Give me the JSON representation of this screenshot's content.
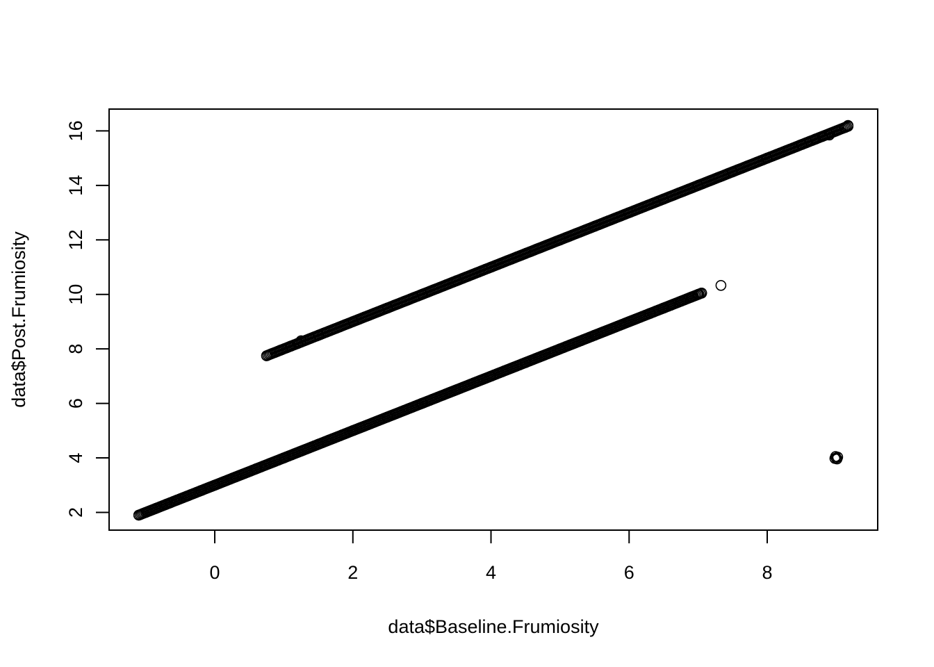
{
  "chart_data": {
    "type": "scatter",
    "title": "",
    "xlabel": "data$Baseline.Frumiosity",
    "ylabel": "data$Post.Frumiosity",
    "xlim": [
      -1.53,
      9.6
    ],
    "ylim": [
      1.35,
      16.8
    ],
    "xticks": [
      0,
      2,
      4,
      6,
      8
    ],
    "yticks": [
      2,
      4,
      6,
      8,
      10,
      12,
      14,
      16
    ],
    "grid": false,
    "legend": "none",
    "marker": "open-circle",
    "colors": {
      "points": "#000000",
      "axes": "#000000",
      "background": "#ffffff"
    },
    "series": [
      {
        "name": "",
        "points": [
          [
            -1.1,
            1.9
          ],
          [
            -1.0,
            2.0
          ],
          [
            -0.85,
            2.15
          ],
          [
            -0.7,
            2.3
          ],
          [
            -0.65,
            2.35
          ],
          [
            -0.55,
            2.45
          ],
          [
            -0.4,
            2.6
          ],
          [
            -0.2,
            2.8
          ],
          [
            0.0,
            3.0
          ],
          [
            0.3,
            3.3
          ],
          [
            0.6,
            3.6
          ],
          [
            1.0,
            4.0
          ],
          [
            1.5,
            4.5
          ],
          [
            2.0,
            5.0
          ],
          [
            2.5,
            5.5
          ],
          [
            3.0,
            6.0
          ],
          [
            3.5,
            6.5
          ],
          [
            4.0,
            7.0
          ],
          [
            4.5,
            7.5
          ],
          [
            5.0,
            8.0
          ],
          [
            5.5,
            8.5
          ],
          [
            6.0,
            9.0
          ],
          [
            6.3,
            9.3
          ],
          [
            6.5,
            9.5
          ],
          [
            6.6,
            9.6
          ],
          [
            6.75,
            9.75
          ],
          [
            6.9,
            9.9
          ],
          [
            7.0,
            10.0
          ],
          [
            7.05,
            10.05
          ],
          [
            7.33,
            10.33
          ],
          [
            0.75,
            7.75
          ],
          [
            0.95,
            7.95
          ],
          [
            1.1,
            8.1
          ],
          [
            1.2,
            8.2
          ],
          [
            1.25,
            8.3
          ],
          [
            1.5,
            8.5
          ],
          [
            2.0,
            9.0
          ],
          [
            2.5,
            9.5
          ],
          [
            3.0,
            10.0
          ],
          [
            3.5,
            10.5
          ],
          [
            4.0,
            11.0
          ],
          [
            4.5,
            11.5
          ],
          [
            5.0,
            12.0
          ],
          [
            5.5,
            12.5
          ],
          [
            6.0,
            13.0
          ],
          [
            6.5,
            13.5
          ],
          [
            7.0,
            14.0
          ],
          [
            7.5,
            14.5
          ],
          [
            8.0,
            15.0
          ],
          [
            8.5,
            15.5
          ],
          [
            8.7,
            15.7
          ],
          [
            8.8,
            15.8
          ],
          [
            8.9,
            15.85
          ],
          [
            9.0,
            16.0
          ],
          [
            9.13,
            16.13
          ],
          [
            9.17,
            16.2
          ],
          [
            8.98,
            3.98
          ],
          [
            9.0,
            4.0
          ],
          [
            9.02,
            4.03
          ],
          [
            8.99,
            4.05
          ],
          [
            9.01,
            3.96
          ]
        ],
        "dense_bands": [
          {
            "x_from": -1.1,
            "x_to": 7.05,
            "intercept": 3.0,
            "slope": 1.0
          },
          {
            "x_from": 0.75,
            "x_to": 9.17,
            "intercept": 7.0,
            "slope": 1.0
          }
        ]
      }
    ]
  }
}
